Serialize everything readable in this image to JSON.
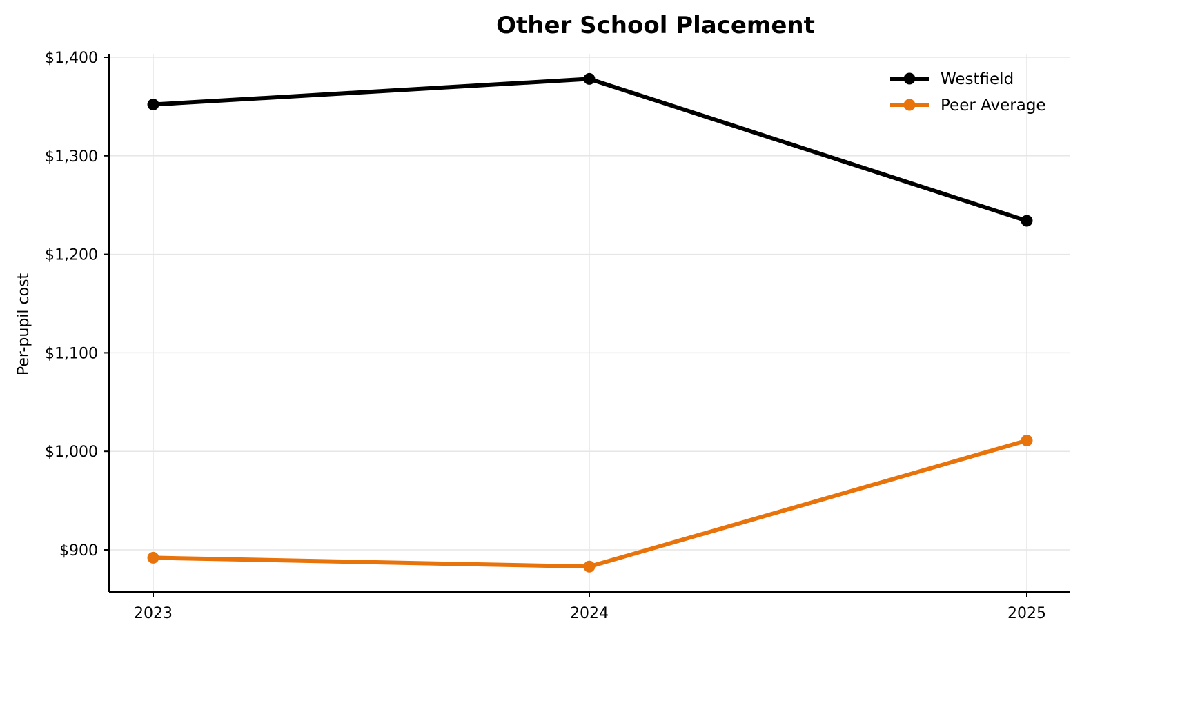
{
  "chart_data": {
    "type": "line",
    "title": "Other School Placement",
    "xlabel": "",
    "ylabel": "Per-pupil cost",
    "categories": [
      "2023",
      "2024",
      "2025"
    ],
    "series": [
      {
        "name": "Westfield",
        "color": "#000000",
        "values": [
          1352,
          1378,
          1234
        ]
      },
      {
        "name": "Peer Average",
        "color": "#E8730A",
        "values": [
          892,
          883,
          1011
        ]
      }
    ],
    "ylim": [
      857,
      1405
    ],
    "yticks": [
      900,
      1000,
      1100,
      1200,
      1300,
      1400
    ],
    "ytick_labels": [
      "$900",
      "$1,000",
      "$1,100",
      "$1,200",
      "$1,300",
      "$1,400"
    ],
    "grid": true,
    "legend_position": "upper right"
  }
}
